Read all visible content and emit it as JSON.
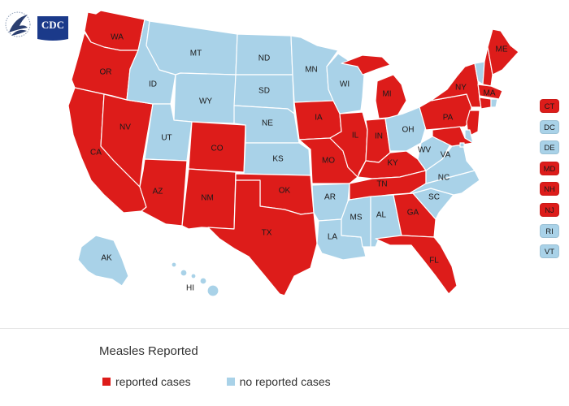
{
  "header": {
    "logo_text": "CDC"
  },
  "colors": {
    "reported": "#dd1c1a",
    "none": "#a9d2e8",
    "border": "#ffffff"
  },
  "states": [
    {
      "abbr": "WA",
      "status": "reported"
    },
    {
      "abbr": "OR",
      "status": "reported"
    },
    {
      "abbr": "CA",
      "status": "reported"
    },
    {
      "abbr": "NV",
      "status": "reported"
    },
    {
      "abbr": "ID",
      "status": "none"
    },
    {
      "abbr": "MT",
      "status": "none"
    },
    {
      "abbr": "WY",
      "status": "none"
    },
    {
      "abbr": "UT",
      "status": "none"
    },
    {
      "abbr": "AZ",
      "status": "reported"
    },
    {
      "abbr": "CO",
      "status": "reported"
    },
    {
      "abbr": "NM",
      "status": "reported"
    },
    {
      "abbr": "ND",
      "status": "none"
    },
    {
      "abbr": "SD",
      "status": "none"
    },
    {
      "abbr": "NE",
      "status": "none"
    },
    {
      "abbr": "KS",
      "status": "none"
    },
    {
      "abbr": "OK",
      "status": "reported"
    },
    {
      "abbr": "TX",
      "status": "reported"
    },
    {
      "abbr": "MN",
      "status": "none"
    },
    {
      "abbr": "IA",
      "status": "reported"
    },
    {
      "abbr": "MO",
      "status": "reported"
    },
    {
      "abbr": "AR",
      "status": "none"
    },
    {
      "abbr": "LA",
      "status": "none"
    },
    {
      "abbr": "WI",
      "status": "none"
    },
    {
      "abbr": "IL",
      "status": "reported"
    },
    {
      "abbr": "MI",
      "status": "reported"
    },
    {
      "abbr": "IN",
      "status": "reported"
    },
    {
      "abbr": "OH",
      "status": "none"
    },
    {
      "abbr": "KY",
      "status": "reported"
    },
    {
      "abbr": "TN",
      "status": "reported"
    },
    {
      "abbr": "MS",
      "status": "none"
    },
    {
      "abbr": "AL",
      "status": "none"
    },
    {
      "abbr": "GA",
      "status": "reported"
    },
    {
      "abbr": "FL",
      "status": "reported"
    },
    {
      "abbr": "SC",
      "status": "none"
    },
    {
      "abbr": "NC",
      "status": "none"
    },
    {
      "abbr": "VA",
      "status": "none"
    },
    {
      "abbr": "WV",
      "status": "none"
    },
    {
      "abbr": "PA",
      "status": "reported"
    },
    {
      "abbr": "NY",
      "status": "reported"
    },
    {
      "abbr": "ME",
      "status": "reported"
    },
    {
      "abbr": "MA",
      "status": "reported"
    },
    {
      "abbr": "AK",
      "status": "none"
    },
    {
      "abbr": "HI",
      "status": "none"
    }
  ],
  "small_states": [
    {
      "abbr": "CT",
      "status": "reported"
    },
    {
      "abbr": "DC",
      "status": "none"
    },
    {
      "abbr": "DE",
      "status": "none"
    },
    {
      "abbr": "MD",
      "status": "reported"
    },
    {
      "abbr": "NH",
      "status": "reported"
    },
    {
      "abbr": "NJ",
      "status": "reported"
    },
    {
      "abbr": "RI",
      "status": "none"
    },
    {
      "abbr": "VT",
      "status": "none"
    }
  ],
  "legend": {
    "title": "Measles Reported",
    "reported_label": "reported cases",
    "none_label": "no reported cases"
  }
}
